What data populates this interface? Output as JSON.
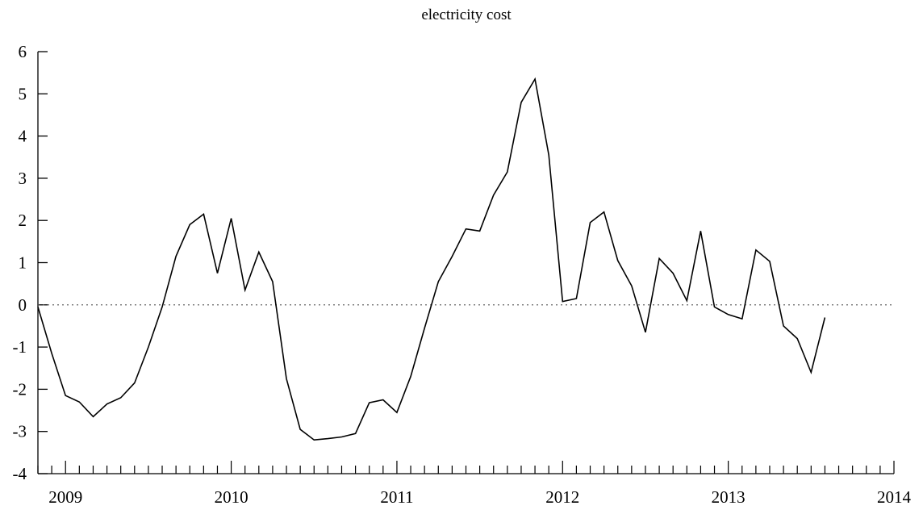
{
  "chart_data": {
    "type": "line",
    "title": "electricity cost",
    "xlabel": "",
    "ylabel": "",
    "x_tick_labels": [
      "2009",
      "2010",
      "2011",
      "2012",
      "2013",
      "2014"
    ],
    "y_tick_labels": [
      "-4",
      "-3",
      "-2",
      "-1",
      "0",
      "1",
      "2",
      "3",
      "4",
      "5",
      "6"
    ],
    "ylim": [
      -4,
      6
    ],
    "xlim": [
      "2008-11",
      "2014-01"
    ],
    "reference_line": {
      "y": 0,
      "style": "dotted"
    },
    "grid": false,
    "legend": "none",
    "line_color": "#000000",
    "x": [
      "2008-11",
      "2008-12",
      "2009-01",
      "2009-02",
      "2009-03",
      "2009-04",
      "2009-05",
      "2009-06",
      "2009-07",
      "2009-08",
      "2009-09",
      "2009-10",
      "2009-11",
      "2009-12",
      "2010-01",
      "2010-02",
      "2010-03",
      "2010-04",
      "2010-05",
      "2010-06",
      "2010-07",
      "2010-08",
      "2010-09",
      "2010-10",
      "2010-11",
      "2010-12",
      "2011-01",
      "2011-02",
      "2011-03",
      "2011-04",
      "2011-05",
      "2011-06",
      "2011-07",
      "2011-08",
      "2011-09",
      "2011-10",
      "2011-11",
      "2011-12",
      "2012-01",
      "2012-02",
      "2012-03",
      "2012-04",
      "2012-05",
      "2012-06",
      "2012-07",
      "2012-08",
      "2012-09",
      "2012-10",
      "2012-11",
      "2012-12",
      "2013-01",
      "2013-02",
      "2013-03",
      "2013-04",
      "2013-05",
      "2013-06",
      "2013-07",
      "2013-08"
    ],
    "values": [
      -0.05,
      -1.15,
      -2.15,
      -2.3,
      -2.65,
      -2.35,
      -2.2,
      -1.85,
      -1.0,
      -0.05,
      1.15,
      1.9,
      2.15,
      0.75,
      2.05,
      0.35,
      1.25,
      0.55,
      -1.75,
      -2.95,
      -3.2,
      -3.17,
      -3.13,
      -3.05,
      -2.32,
      -2.25,
      -2.55,
      -1.7,
      -0.55,
      0.55,
      1.15,
      1.8,
      1.75,
      2.6,
      3.15,
      4.8,
      5.35,
      3.55,
      0.08,
      0.15,
      1.95,
      2.2,
      1.05,
      0.45,
      -0.65,
      1.1,
      0.75,
      0.1,
      1.75,
      -0.05,
      -0.23,
      -0.33,
      1.3,
      1.03,
      -0.5,
      -0.8,
      -1.6,
      -0.3
    ]
  }
}
